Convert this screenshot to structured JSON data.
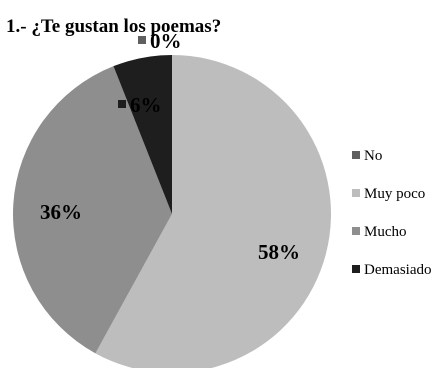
{
  "chart_data": {
    "type": "pie",
    "title": "1.- ¿Te gustan los poemas?",
    "categories": [
      "No",
      "Muy poco",
      "Mucho",
      "Demasiado"
    ],
    "values": [
      0,
      58,
      36,
      6
    ],
    "data_labels": [
      "0%",
      "58%",
      "36%",
      "6%"
    ],
    "colors": [
      "#5f5f5f",
      "#bdbdbd",
      "#8e8e8e",
      "#1e1e1e"
    ],
    "legend_position": "right"
  }
}
